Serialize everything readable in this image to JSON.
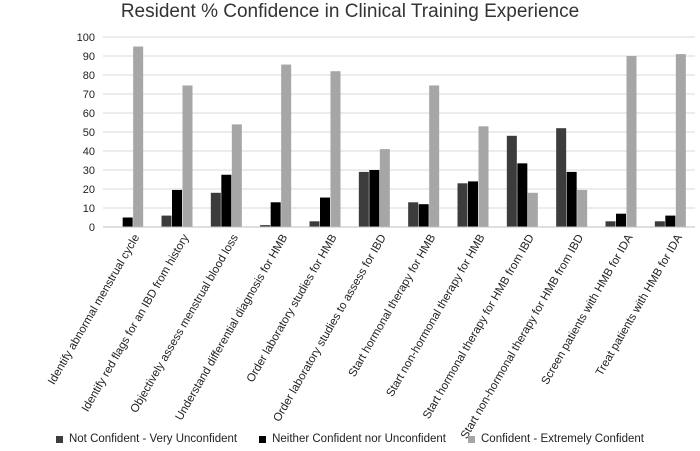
{
  "chart_data": {
    "type": "bar",
    "title": "Resident % Confidence in Clinical Training Experience",
    "xlabel": "",
    "ylabel": "",
    "ylim": [
      0,
      100
    ],
    "yticks": [
      "0",
      "10",
      "20",
      "30",
      "40",
      "50",
      "60",
      "70",
      "80",
      "90",
      "100"
    ],
    "grid": true,
    "legend_position": "bottom",
    "categories": [
      "Identify abnormal menstrual cycle",
      "Identify red flags for an IBD from history",
      "Objectively assess menstrual blood loss",
      "Understand differential diagnosis for HMB",
      "Order laboratory studies for HMB",
      "Order laboratory studies to assess for IBD",
      "Start hormonal therapy for HMB",
      "Start non-hormonal therapy for HMB",
      "Start hormonal therapy for HMB from IBD",
      "Start non-hormonal therapy for HMB from IBD",
      "Screen patients with HMB for IDA",
      "Treat patients with HMB for IDA"
    ],
    "series": [
      {
        "name": "Not Confident - Very Unconfident",
        "color": "#3c3c3c",
        "values": [
          0,
          6,
          18,
          1,
          3,
          29,
          13,
          23,
          48,
          52,
          3,
          3
        ]
      },
      {
        "name": "Neither Confident nor Unconfident",
        "color": "#000000",
        "values": [
          5,
          19.5,
          27.5,
          13,
          15.5,
          30,
          12,
          24,
          33.5,
          29,
          7,
          6
        ]
      },
      {
        "name": "Confident - Extremely Confident",
        "color": "#a6a6a6",
        "values": [
          95,
          74.5,
          54,
          85.5,
          82,
          41,
          74.5,
          53,
          18,
          19.5,
          90,
          91
        ]
      }
    ]
  }
}
